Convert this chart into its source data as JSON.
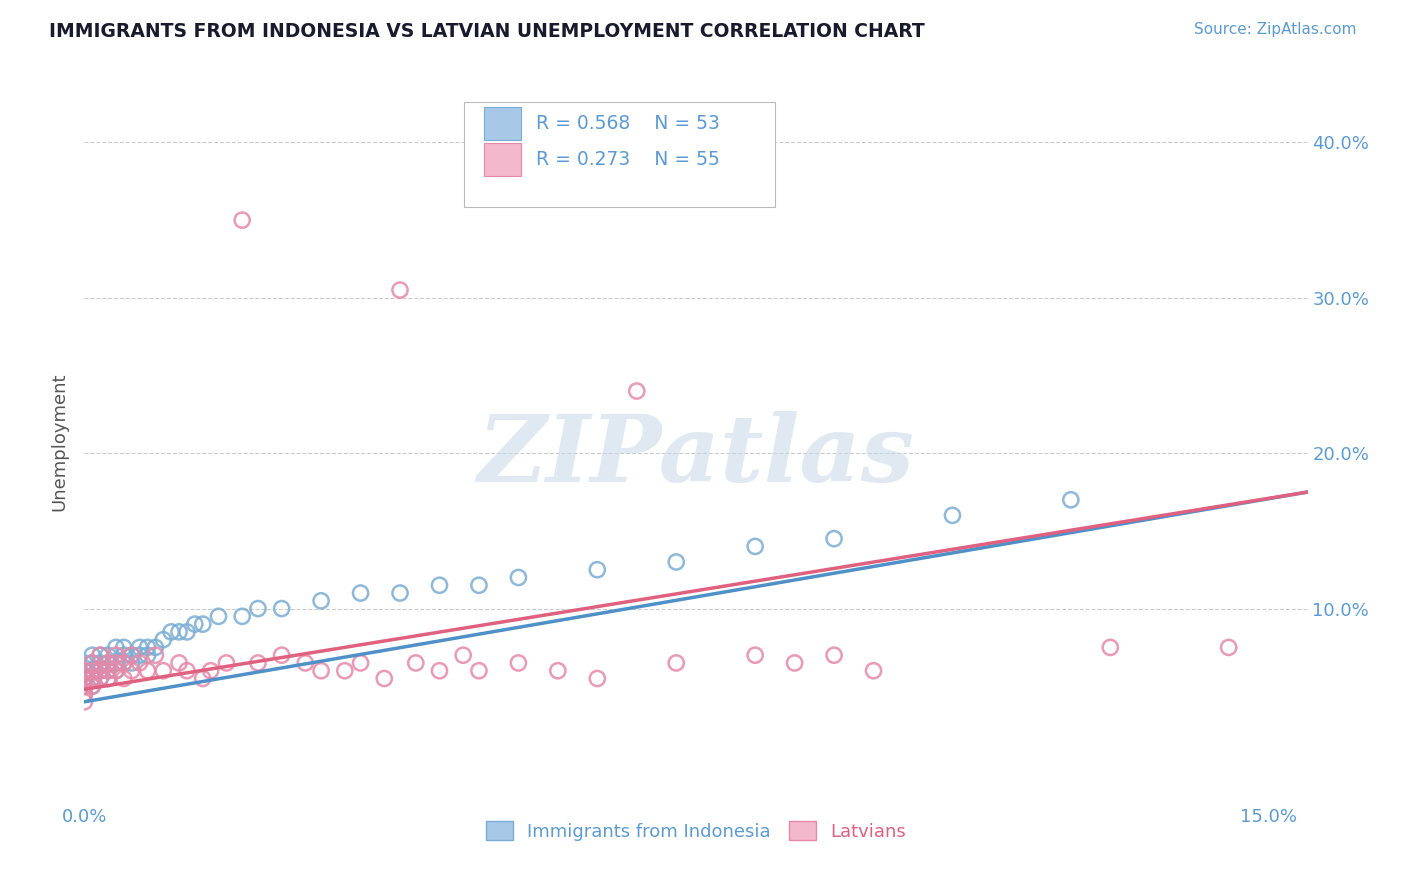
{
  "title": "IMMIGRANTS FROM INDONESIA VS LATVIAN UNEMPLOYMENT CORRELATION CHART",
  "source_text": "Source: ZipAtlas.com",
  "ylabel": "Unemployment",
  "xlim": [
    0.0,
    0.155
  ],
  "ylim": [
    -0.025,
    0.44
  ],
  "xtick_vals": [
    0.0,
    0.025,
    0.05,
    0.075,
    0.1,
    0.125,
    0.15
  ],
  "xtick_labels": [
    "0.0%",
    "",
    "",
    "",
    "",
    "",
    "15.0%"
  ],
  "ytick_vals": [
    0.1,
    0.2,
    0.3,
    0.4
  ],
  "ytick_labels": [
    "10.0%",
    "20.0%",
    "30.0%",
    "40.0%"
  ],
  "blue_color": "#a8c8e8",
  "pink_color": "#f4b8cc",
  "blue_edge_color": "#7aadd4",
  "pink_edge_color": "#e888a8",
  "blue_line_color": "#5090c8",
  "pink_line_color": "#e06080",
  "legend_r_blue": "R = 0.568",
  "legend_n_blue": "N = 53",
  "legend_r_pink": "R = 0.273",
  "legend_n_pink": "N = 55",
  "legend_label_blue": "Immigrants from Indonesia",
  "legend_label_pink": "Latvians",
  "watermark": "ZIPatlas",
  "tick_color": "#5b9bd5",
  "title_color": "#1a1a2e",
  "source_color": "#5b9bd5",
  "blue_x": [
    0.0,
    0.0,
    0.0,
    0.0,
    0.0,
    0.001,
    0.001,
    0.001,
    0.001,
    0.001,
    0.002,
    0.002,
    0.002,
    0.002,
    0.003,
    0.003,
    0.003,
    0.003,
    0.004,
    0.004,
    0.004,
    0.005,
    0.005,
    0.005,
    0.006,
    0.006,
    0.007,
    0.007,
    0.008,
    0.008,
    0.009,
    0.01,
    0.011,
    0.012,
    0.013,
    0.014,
    0.015,
    0.017,
    0.02,
    0.022,
    0.025,
    0.03,
    0.035,
    0.04,
    0.045,
    0.05,
    0.055,
    0.065,
    0.075,
    0.085,
    0.095,
    0.11,
    0.125
  ],
  "blue_y": [
    0.05,
    0.06,
    0.065,
    0.055,
    0.045,
    0.055,
    0.065,
    0.07,
    0.06,
    0.05,
    0.06,
    0.07,
    0.065,
    0.055,
    0.065,
    0.07,
    0.06,
    0.055,
    0.065,
    0.075,
    0.06,
    0.07,
    0.075,
    0.065,
    0.07,
    0.065,
    0.075,
    0.07,
    0.075,
    0.07,
    0.075,
    0.08,
    0.085,
    0.085,
    0.085,
    0.09,
    0.09,
    0.095,
    0.095,
    0.1,
    0.1,
    0.105,
    0.11,
    0.11,
    0.115,
    0.115,
    0.12,
    0.125,
    0.13,
    0.14,
    0.145,
    0.16,
    0.17
  ],
  "pink_x": [
    0.0,
    0.0,
    0.0,
    0.0,
    0.0,
    0.001,
    0.001,
    0.001,
    0.001,
    0.002,
    0.002,
    0.002,
    0.003,
    0.003,
    0.003,
    0.004,
    0.004,
    0.004,
    0.005,
    0.005,
    0.006,
    0.006,
    0.007,
    0.008,
    0.009,
    0.01,
    0.012,
    0.013,
    0.015,
    0.016,
    0.018,
    0.02,
    0.022,
    0.025,
    0.028,
    0.03,
    0.033,
    0.035,
    0.038,
    0.04,
    0.042,
    0.045,
    0.048,
    0.05,
    0.055,
    0.06,
    0.065,
    0.07,
    0.075,
    0.085,
    0.09,
    0.095,
    0.1,
    0.13,
    0.145
  ],
  "pink_y": [
    0.045,
    0.055,
    0.06,
    0.05,
    0.04,
    0.055,
    0.065,
    0.06,
    0.05,
    0.06,
    0.055,
    0.07,
    0.06,
    0.065,
    0.055,
    0.06,
    0.07,
    0.065,
    0.065,
    0.055,
    0.06,
    0.07,
    0.065,
    0.06,
    0.07,
    0.06,
    0.065,
    0.06,
    0.055,
    0.06,
    0.065,
    0.35,
    0.065,
    0.07,
    0.065,
    0.06,
    0.06,
    0.065,
    0.055,
    0.305,
    0.065,
    0.06,
    0.07,
    0.06,
    0.065,
    0.06,
    0.055,
    0.24,
    0.065,
    0.07,
    0.065,
    0.07,
    0.06,
    0.075,
    0.075
  ],
  "blue_trendline_x": [
    0.0,
    0.155
  ],
  "blue_trendline_y": [
    0.04,
    0.175
  ],
  "pink_trendline_x": [
    0.0,
    0.155
  ],
  "pink_trendline_y": [
    0.048,
    0.175
  ]
}
